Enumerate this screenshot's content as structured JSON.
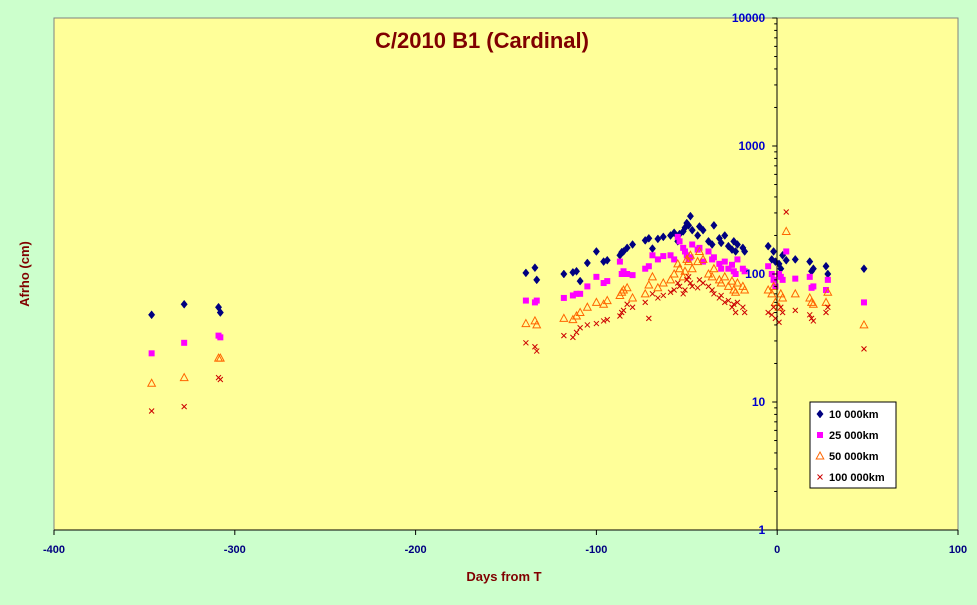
{
  "colors": {
    "page_background": "#ccffcc",
    "plot_background": "#ffff99",
    "title": "#800000",
    "axis_title": "#800000",
    "x_tick_labels": "#000080",
    "y_tick_labels": "#0000cc",
    "axis_line": "#000000"
  },
  "chart_data": {
    "type": "scatter",
    "title": "C/2010 B1 (Cardinal)",
    "xlabel": "Days from T",
    "ylabel": "Afrho (cm)",
    "xlim": [
      -400,
      100
    ],
    "ylim": [
      1,
      10000
    ],
    "y_scale": "log",
    "x_ticks": [
      -400,
      -300,
      -200,
      -100,
      0,
      100
    ],
    "x_tick_labels": [
      "-400",
      "-300",
      "-200",
      "-100",
      "0",
      "100"
    ],
    "y_ticks": [
      1,
      10,
      100,
      1000,
      10000
    ],
    "y_tick_labels": [
      "1",
      "10",
      "100",
      "1000",
      "10000"
    ],
    "grid": false,
    "legend_position": "right-inside",
    "series": [
      {
        "name": "10 000km",
        "marker": "diamond",
        "color": "#000080",
        "points": [
          [
            -346,
            48
          ],
          [
            -328,
            58
          ],
          [
            -309,
            55
          ],
          [
            -308,
            50
          ],
          [
            -139,
            102
          ],
          [
            -134,
            112
          ],
          [
            -133,
            90
          ],
          [
            -118,
            100
          ],
          [
            -113,
            103
          ],
          [
            -111,
            105
          ],
          [
            -109,
            88
          ],
          [
            -105,
            122
          ],
          [
            -100,
            150
          ],
          [
            -96,
            125
          ],
          [
            -94,
            128
          ],
          [
            -87,
            140
          ],
          [
            -86,
            148
          ],
          [
            -85,
            150
          ],
          [
            -83,
            160
          ],
          [
            -80,
            170
          ],
          [
            -73,
            183
          ],
          [
            -71,
            190
          ],
          [
            -69,
            158
          ],
          [
            -66,
            188
          ],
          [
            -63,
            195
          ],
          [
            -59,
            200
          ],
          [
            -57,
            210
          ],
          [
            -55,
            180
          ],
          [
            -54,
            205
          ],
          [
            -52,
            215
          ],
          [
            -51,
            230
          ],
          [
            -50,
            250
          ],
          [
            -49,
            240
          ],
          [
            -48,
            283
          ],
          [
            -47,
            220
          ],
          [
            -44,
            200
          ],
          [
            -43,
            235
          ],
          [
            -41,
            220
          ],
          [
            -38,
            180
          ],
          [
            -36,
            170
          ],
          [
            -35,
            240
          ],
          [
            -32,
            190
          ],
          [
            -31,
            175
          ],
          [
            -29,
            200
          ],
          [
            -27,
            165
          ],
          [
            -25,
            155
          ],
          [
            -24,
            180
          ],
          [
            -23,
            150
          ],
          [
            -22,
            170
          ],
          [
            -19,
            160
          ],
          [
            -18,
            150
          ],
          [
            -5,
            165
          ],
          [
            -3,
            130
          ],
          [
            -2,
            150
          ],
          [
            -1,
            125
          ],
          [
            1,
            120
          ],
          [
            2,
            110
          ],
          [
            3,
            140
          ],
          [
            5,
            128
          ],
          [
            10,
            130
          ],
          [
            18,
            125
          ],
          [
            19,
            105
          ],
          [
            20,
            110
          ],
          [
            27,
            115
          ],
          [
            28,
            100
          ],
          [
            48,
            110
          ]
        ]
      },
      {
        "name": "25 000km",
        "marker": "square",
        "color": "#ff00ff",
        "points": [
          [
            -346,
            24
          ],
          [
            -328,
            29
          ],
          [
            -309,
            33
          ],
          [
            -308,
            32
          ],
          [
            -139,
            62
          ],
          [
            -134,
            60
          ],
          [
            -133,
            62
          ],
          [
            -118,
            65
          ],
          [
            -113,
            68
          ],
          [
            -111,
            70
          ],
          [
            -109,
            70
          ],
          [
            -105,
            80
          ],
          [
            -100,
            95
          ],
          [
            -96,
            85
          ],
          [
            -94,
            88
          ],
          [
            -87,
            125
          ],
          [
            -86,
            100
          ],
          [
            -85,
            105
          ],
          [
            -83,
            100
          ],
          [
            -80,
            98
          ],
          [
            -73,
            110
          ],
          [
            -71,
            115
          ],
          [
            -69,
            140
          ],
          [
            -66,
            130
          ],
          [
            -63,
            138
          ],
          [
            -59,
            140
          ],
          [
            -57,
            130
          ],
          [
            -55,
            195
          ],
          [
            -54,
            180
          ],
          [
            -52,
            160
          ],
          [
            -51,
            150
          ],
          [
            -50,
            140
          ],
          [
            -49,
            130
          ],
          [
            -48,
            135
          ],
          [
            -47,
            170
          ],
          [
            -44,
            155
          ],
          [
            -43,
            160
          ],
          [
            -41,
            125
          ],
          [
            -38,
            150
          ],
          [
            -36,
            130
          ],
          [
            -35,
            135
          ],
          [
            -32,
            120
          ],
          [
            -31,
            110
          ],
          [
            -29,
            125
          ],
          [
            -27,
            110
          ],
          [
            -25,
            118
          ],
          [
            -24,
            105
          ],
          [
            -23,
            100
          ],
          [
            -22,
            130
          ],
          [
            -19,
            110
          ],
          [
            -18,
            105
          ],
          [
            -5,
            115
          ],
          [
            -3,
            100
          ],
          [
            -2,
            90
          ],
          [
            -1,
            80
          ],
          [
            1,
            100
          ],
          [
            2,
            95
          ],
          [
            3,
            90
          ],
          [
            5,
            150
          ],
          [
            10,
            92
          ],
          [
            18,
            95
          ],
          [
            19,
            78
          ],
          [
            20,
            80
          ],
          [
            27,
            75
          ],
          [
            28,
            90
          ],
          [
            48,
            60
          ]
        ]
      },
      {
        "name": "50 000km",
        "marker": "triangle",
        "color": "#ff6600",
        "points": [
          [
            -346,
            14
          ],
          [
            -328,
            15.5
          ],
          [
            -309,
            22
          ],
          [
            -308,
            22
          ],
          [
            -139,
            41
          ],
          [
            -134,
            43
          ],
          [
            -133,
            40
          ],
          [
            -118,
            45
          ],
          [
            -113,
            44
          ],
          [
            -111,
            47
          ],
          [
            -109,
            50
          ],
          [
            -105,
            55
          ],
          [
            -100,
            60
          ],
          [
            -96,
            58
          ],
          [
            -94,
            62
          ],
          [
            -87,
            68
          ],
          [
            -86,
            72
          ],
          [
            -85,
            75
          ],
          [
            -83,
            78
          ],
          [
            -80,
            65
          ],
          [
            -73,
            70
          ],
          [
            -71,
            82
          ],
          [
            -69,
            95
          ],
          [
            -66,
            78
          ],
          [
            -63,
            85
          ],
          [
            -59,
            90
          ],
          [
            -57,
            100
          ],
          [
            -55,
            120
          ],
          [
            -54,
            110
          ],
          [
            -52,
            95
          ],
          [
            -51,
            105
          ],
          [
            -50,
            130
          ],
          [
            -49,
            125
          ],
          [
            -48,
            140
          ],
          [
            -47,
            110
          ],
          [
            -44,
            125
          ],
          [
            -43,
            150
          ],
          [
            -41,
            130
          ],
          [
            -38,
            100
          ],
          [
            -36,
            95
          ],
          [
            -35,
            110
          ],
          [
            -32,
            90
          ],
          [
            -31,
            85
          ],
          [
            -29,
            95
          ],
          [
            -27,
            80
          ],
          [
            -25,
            88
          ],
          [
            -24,
            75
          ],
          [
            -23,
            72
          ],
          [
            -22,
            85
          ],
          [
            -19,
            80
          ],
          [
            -18,
            75
          ],
          [
            -5,
            75
          ],
          [
            -3,
            70
          ],
          [
            -2,
            80
          ],
          [
            -1,
            60
          ],
          [
            1,
            55
          ],
          [
            2,
            70
          ],
          [
            3,
            65
          ],
          [
            5,
            215
          ],
          [
            10,
            70
          ],
          [
            18,
            65
          ],
          [
            19,
            60
          ],
          [
            20,
            58
          ],
          [
            27,
            60
          ],
          [
            28,
            72
          ],
          [
            48,
            40
          ]
        ]
      },
      {
        "name": "100 000km",
        "marker": "x",
        "color": "#cc0000",
        "points": [
          [
            -346,
            8.5
          ],
          [
            -328,
            9.2
          ],
          [
            -309,
            15.5
          ],
          [
            -308,
            15
          ],
          [
            -139,
            29
          ],
          [
            -134,
            27
          ],
          [
            -133,
            25
          ],
          [
            -118,
            33
          ],
          [
            -113,
            32
          ],
          [
            -111,
            35
          ],
          [
            -109,
            38
          ],
          [
            -105,
            40
          ],
          [
            -100,
            41
          ],
          [
            -96,
            43
          ],
          [
            -94,
            44
          ],
          [
            -87,
            47
          ],
          [
            -86,
            50
          ],
          [
            -85,
            52
          ],
          [
            -83,
            58
          ],
          [
            -80,
            55
          ],
          [
            -73,
            60
          ],
          [
            -71,
            45
          ],
          [
            -69,
            70
          ],
          [
            -66,
            65
          ],
          [
            -63,
            68
          ],
          [
            -59,
            72
          ],
          [
            -57,
            75
          ],
          [
            -55,
            85
          ],
          [
            -54,
            80
          ],
          [
            -52,
            70
          ],
          [
            -51,
            75
          ],
          [
            -50,
            90
          ],
          [
            -49,
            95
          ],
          [
            -48,
            85
          ],
          [
            -47,
            80
          ],
          [
            -44,
            78
          ],
          [
            -43,
            90
          ],
          [
            -41,
            85
          ],
          [
            -38,
            80
          ],
          [
            -36,
            75
          ],
          [
            -35,
            70
          ],
          [
            -32,
            65
          ],
          [
            -31,
            68
          ],
          [
            -29,
            60
          ],
          [
            -27,
            62
          ],
          [
            -25,
            55
          ],
          [
            -24,
            58
          ],
          [
            -23,
            50
          ],
          [
            -22,
            60
          ],
          [
            -19,
            55
          ],
          [
            -18,
            50
          ],
          [
            -5,
            50
          ],
          [
            -3,
            48
          ],
          [
            -2,
            55
          ],
          [
            -1,
            45
          ],
          [
            1,
            42
          ],
          [
            2,
            55
          ],
          [
            3,
            50
          ],
          [
            5,
            305
          ],
          [
            10,
            52
          ],
          [
            18,
            48
          ],
          [
            19,
            45
          ],
          [
            20,
            43
          ],
          [
            27,
            50
          ],
          [
            28,
            55
          ],
          [
            48,
            26
          ]
        ]
      }
    ]
  }
}
